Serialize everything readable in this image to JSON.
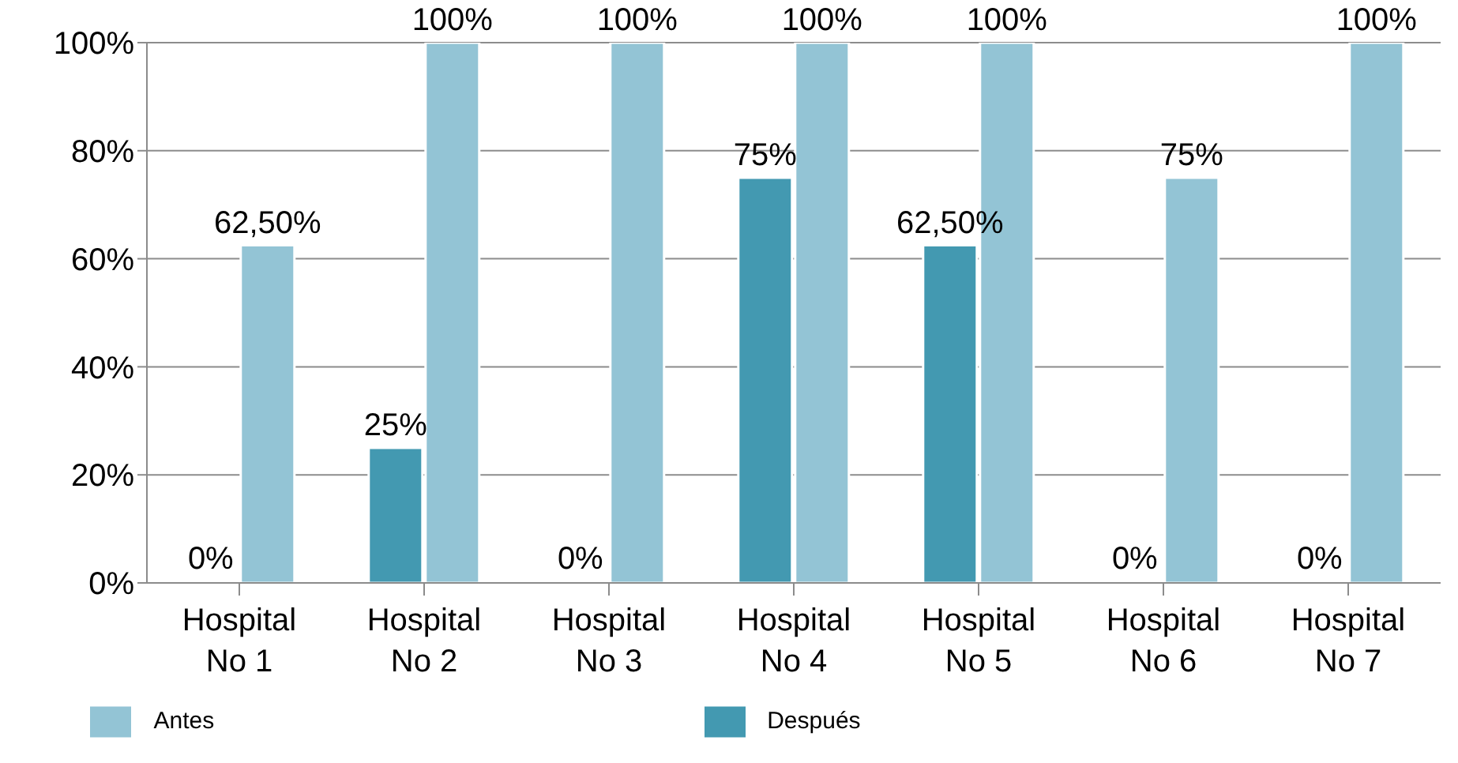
{
  "chart_data": {
    "type": "bar",
    "categories": [
      "Hospital No 1",
      "Hospital No 2",
      "Hospital No 3",
      "Hospital No 4",
      "Hospital No 5",
      "Hospital No 6",
      "Hospital No 7"
    ],
    "series": [
      {
        "name": "Después",
        "color": "#4399b1",
        "values": [
          0,
          25,
          0,
          75,
          62.5,
          0,
          0
        ],
        "value_labels": [
          "0%",
          "25%",
          "0%",
          "75%",
          "62,50%",
          "0%",
          "0%"
        ]
      },
      {
        "name": "Antes",
        "color": "#93c4d5",
        "values": [
          62.5,
          100,
          100,
          100,
          100,
          75,
          100
        ],
        "value_labels": [
          "62,50%",
          "100%",
          "100%",
          "100%",
          "100%",
          "75%",
          "100%"
        ]
      }
    ],
    "ylim": [
      0,
      100
    ],
    "yticks": [
      {
        "value": 0,
        "label": "0%"
      },
      {
        "value": 20,
        "label": "20%"
      },
      {
        "value": 40,
        "label": "40%"
      },
      {
        "value": 60,
        "label": "60%"
      },
      {
        "value": 80,
        "label": "80%"
      },
      {
        "value": 100,
        "label": "100%"
      }
    ],
    "grid": "y",
    "legend": "bottom"
  }
}
